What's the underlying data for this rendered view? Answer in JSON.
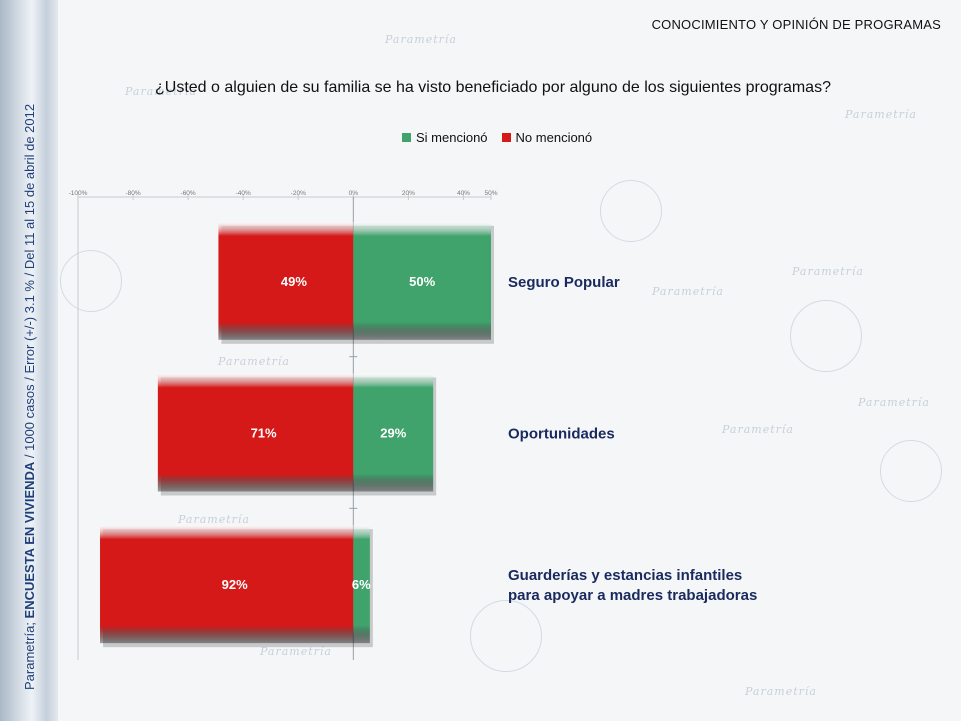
{
  "header": {
    "section_title": "CONOCIMIENTO Y OPINIÓN DE PROGRAMAS",
    "question": "¿Usted o alguien de su familia se ha visto beneficiado por alguno de los siguientes programas?"
  },
  "side_note": {
    "prefix": "Parametría; ",
    "bold": "ENCUESTA EN VIVIENDA",
    "rest": " / 1000 casos / Error (+/-) 3.1 % / Del 11 al 15 de abril de 2012"
  },
  "watermark": "Parametría",
  "colors": {
    "yes": "#3fa36b",
    "no": "#d51818"
  },
  "chart_data": {
    "type": "bar",
    "orientation": "horizontal-diverging",
    "title": "",
    "xlabel": "",
    "ylabel": "",
    "xlim": [
      -100,
      50
    ],
    "ticks": [
      -100,
      -80,
      -60,
      -40,
      -20,
      0,
      20,
      40,
      50
    ],
    "tick_labels": [
      "-100%",
      "-80%",
      "-60%",
      "-40%",
      "-20%",
      "0%",
      "20%",
      "40%",
      "50%"
    ],
    "categories": [
      [
        "Seguro Popular"
      ],
      [
        "Oportunidades"
      ],
      [
        "Guarderías y estancias infantiles",
        "para apoyar a madres trabajadoras"
      ]
    ],
    "series": [
      {
        "name": "Si mencionó",
        "values": [
          50,
          29,
          6
        ],
        "labels": [
          "50%",
          "29%",
          "6%"
        ]
      },
      {
        "name": "No mencionó",
        "values": [
          49,
          71,
          92
        ],
        "labels": [
          "49%",
          "71%",
          "92%"
        ]
      }
    ],
    "legend": "top-center"
  }
}
